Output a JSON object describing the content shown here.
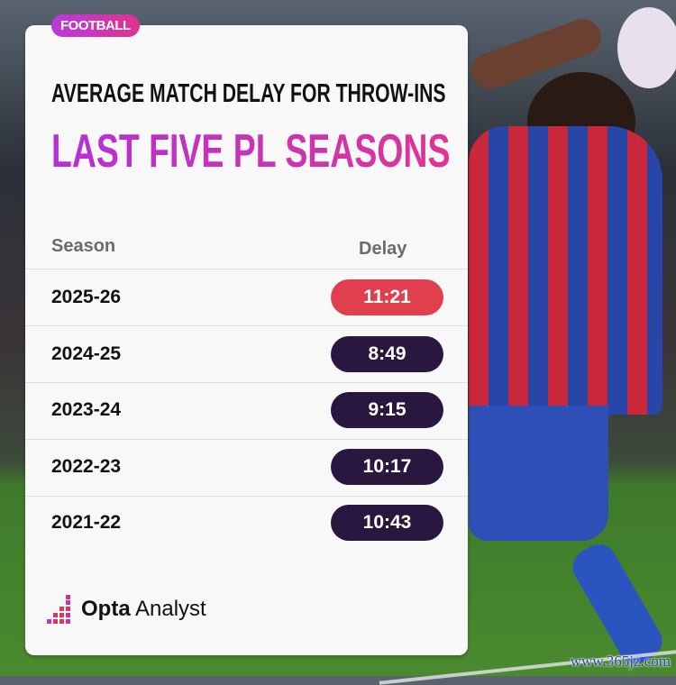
{
  "tag": "FOOTBALL",
  "title_line1": "AVERAGE MATCH DELAY FOR THROW-INS",
  "title_line2": "LAST FIVE PL SEASONS",
  "columns": {
    "season": "Season",
    "delay": "Delay"
  },
  "rows": [
    {
      "season": "2025-26",
      "delay": "11:21",
      "highlight": true
    },
    {
      "season": "2024-25",
      "delay": "8:49",
      "highlight": false
    },
    {
      "season": "2023-24",
      "delay": "9:15",
      "highlight": false
    },
    {
      "season": "2022-23",
      "delay": "10:17",
      "highlight": false
    },
    {
      "season": "2021-22",
      "delay": "10:43",
      "highlight": false
    }
  ],
  "colors": {
    "highlight_pill": "#e0404e",
    "pill": "#2a1740",
    "accent": "#c234c0"
  },
  "logo": {
    "brand_bold": "Opta",
    "brand_light": "Analyst"
  },
  "watermark": "www.365jz.com"
}
